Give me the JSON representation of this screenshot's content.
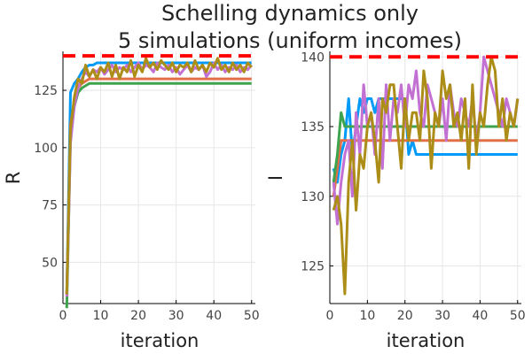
{
  "title_line1": "Schelling dynamics only",
  "title_line2": "5 simulations (uniform incomes)",
  "chart_data": [
    {
      "type": "line",
      "xlabel": "iteration",
      "ylabel": "R",
      "xlim": [
        0,
        51
      ],
      "ylim": [
        32,
        142
      ],
      "xticks": [
        0,
        10,
        20,
        30,
        40,
        50
      ],
      "yticks": [
        50,
        75,
        100,
        125
      ],
      "grid": true,
      "reference_line": {
        "y": 140,
        "color": "#ff0000",
        "style": "dashed"
      },
      "series": [
        {
          "color": "#009af9",
          "values": [
            36,
            124,
            128,
            130,
            133,
            135,
            136,
            136,
            137,
            137,
            137,
            137,
            137,
            137,
            137,
            137,
            137,
            137,
            137,
            137,
            137,
            137,
            137,
            137,
            137,
            137,
            137,
            137,
            137,
            137,
            137,
            137,
            137,
            137,
            137,
            137,
            137,
            137,
            137,
            137,
            137,
            137,
            137,
            137,
            137,
            137,
            137,
            137,
            137,
            137
          ]
        },
        {
          "color": "#e26f46",
          "values": [
            36,
            110,
            120,
            126,
            128,
            129,
            130,
            130,
            130,
            130,
            130,
            130,
            130,
            130,
            130,
            130,
            130,
            130,
            130,
            130,
            130,
            130,
            130,
            130,
            130,
            130,
            130,
            130,
            130,
            130,
            130,
            130,
            130,
            130,
            130,
            130,
            130,
            130,
            130,
            130,
            130,
            130,
            130,
            130,
            130,
            130,
            130,
            130,
            130,
            130
          ]
        },
        {
          "color": "#3da44d",
          "values": [
            30,
            105,
            118,
            124,
            126,
            127,
            128,
            128,
            128,
            128,
            128,
            128,
            128,
            128,
            128,
            128,
            128,
            128,
            128,
            128,
            128,
            128,
            128,
            128,
            128,
            128,
            128,
            128,
            128,
            128,
            128,
            128,
            128,
            128,
            128,
            128,
            128,
            128,
            128,
            128,
            128,
            128,
            128,
            128,
            128,
            128,
            128,
            128,
            128,
            128
          ]
        },
        {
          "color": "#c271d2",
          "values": [
            35,
            102,
            118,
            126,
            130,
            133,
            131,
            134,
            133,
            135,
            132,
            134,
            136,
            133,
            135,
            134,
            136,
            133,
            135,
            137,
            134,
            136,
            135,
            133,
            137,
            135,
            134,
            136,
            133,
            135,
            132,
            134,
            136,
            133,
            135,
            134,
            136,
            131,
            133,
            137,
            134,
            136,
            133,
            135,
            134,
            136,
            133,
            135,
            134,
            136
          ]
        },
        {
          "color": "#ac8d18",
          "values": [
            36,
            108,
            122,
            130,
            128,
            136,
            131,
            134,
            130,
            135,
            133,
            137,
            131,
            136,
            130,
            135,
            133,
            138,
            131,
            136,
            133,
            139,
            135,
            137,
            134,
            138,
            136,
            134,
            137,
            133,
            136,
            135,
            137,
            133,
            138,
            134,
            136,
            133,
            137,
            135,
            139,
            134,
            136,
            133,
            137,
            134,
            136,
            133,
            137,
            135
          ]
        }
      ]
    },
    {
      "type": "line",
      "xlabel": "iteration",
      "ylabel": "I",
      "xlim": [
        0,
        51
      ],
      "ylim": [
        122.3,
        140.4
      ],
      "xticks": [
        0,
        10,
        20,
        30,
        40,
        50
      ],
      "yticks": [
        125,
        130,
        135,
        140
      ],
      "grid": true,
      "reference_line": {
        "y": 140,
        "color": "#ff0000",
        "style": "dashed"
      },
      "series": [
        {
          "color": "#009af9",
          "values": [
            132,
            131,
            133,
            134,
            137,
            133,
            135,
            137,
            136,
            137,
            137,
            136,
            137,
            137,
            137,
            137,
            137,
            137,
            137,
            137,
            133,
            134,
            133,
            133,
            133,
            133,
            133,
            133,
            133,
            133,
            133,
            133,
            133,
            133,
            133,
            133,
            133,
            133,
            133,
            133,
            133,
            133,
            133,
            133,
            133,
            133,
            133,
            133,
            133,
            133
          ]
        },
        {
          "color": "#e26f46",
          "values": [
            130,
            132,
            134,
            134,
            134,
            134,
            134,
            134,
            134,
            134,
            134,
            134,
            134,
            134,
            134,
            134,
            134,
            134,
            134,
            134,
            134,
            134,
            134,
            134,
            134,
            134,
            134,
            134,
            134,
            134,
            134,
            134,
            134,
            134,
            134,
            134,
            134,
            134,
            134,
            134,
            134,
            134,
            134,
            134,
            134,
            134,
            134,
            134,
            134,
            134
          ]
        },
        {
          "color": "#3da44d",
          "values": [
            131,
            133,
            136,
            135,
            135,
            135,
            135,
            135,
            135,
            135,
            135,
            135,
            135,
            135,
            135,
            135,
            135,
            135,
            135,
            135,
            135,
            135,
            135,
            135,
            135,
            135,
            135,
            135,
            135,
            135,
            135,
            135,
            135,
            135,
            135,
            135,
            135,
            135,
            135,
            135,
            135,
            135,
            135,
            135,
            135,
            135,
            135,
            135,
            135,
            135
          ]
        },
        {
          "color": "#c271d2",
          "values": [
            131,
            128,
            131,
            133,
            134,
            130,
            136,
            133,
            138,
            135,
            136,
            133,
            137,
            132,
            138,
            134,
            137,
            136,
            138,
            135,
            138,
            137,
            139,
            136,
            135,
            138,
            137,
            136,
            135,
            137,
            134,
            138,
            136,
            135,
            137,
            136,
            135,
            137,
            134,
            136,
            140,
            139,
            138,
            137,
            136,
            135,
            137,
            136,
            135,
            137
          ]
        },
        {
          "color": "#ac8d18",
          "values": [
            129,
            130,
            128,
            123,
            131,
            134,
            129,
            133,
            132,
            135,
            136,
            134,
            131,
            137,
            136,
            138,
            138,
            135,
            132,
            137,
            134,
            136,
            136,
            134,
            139,
            137,
            132,
            136,
            135,
            139,
            137,
            138,
            135,
            136,
            134,
            137,
            132,
            138,
            133,
            136,
            135,
            138,
            140,
            139,
            135,
            137,
            134,
            136,
            135,
            137
          ]
        }
      ]
    }
  ]
}
